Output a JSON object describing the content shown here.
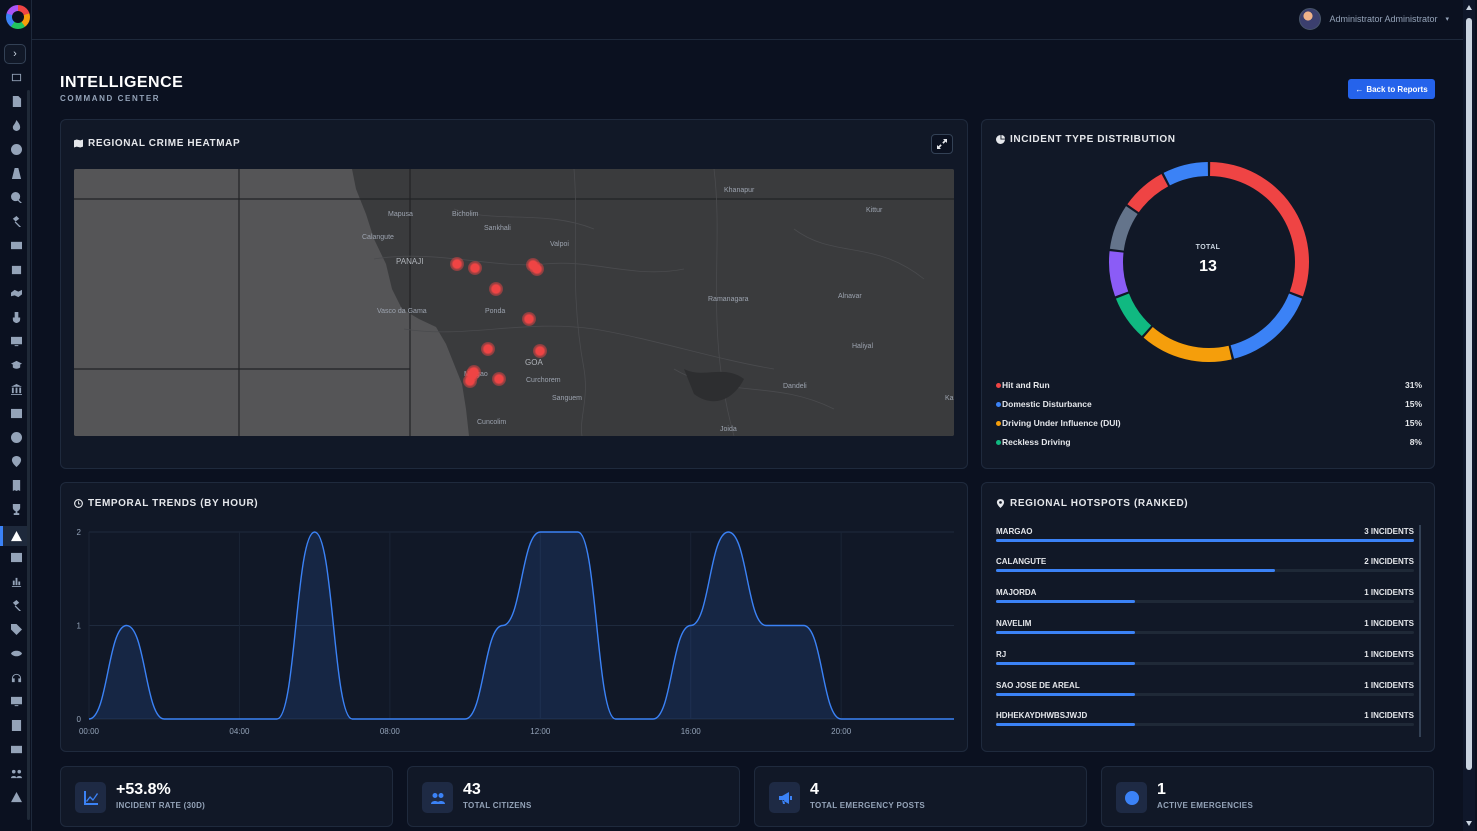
{
  "app": {
    "user_name": "Administrator Administrator"
  },
  "header": {
    "title": "INTELLIGENCE",
    "subtitle": "COMMAND CENTER",
    "back_label": "Back to Reports"
  },
  "heatmap": {
    "title": "REGIONAL CRIME HEATMAP",
    "places": [
      "Khanapur",
      "Kittur",
      "Mapusa",
      "Bicholim",
      "Sankhali",
      "Calangute",
      "Valpoi",
      "PANAJI",
      "Vasco da Gama",
      "Ponda",
      "Ramanagara",
      "Alnavar",
      "Haliyal",
      "GOA",
      "Margao",
      "Curchorem",
      "Sanguem",
      "Dandeli",
      "Cuncolim",
      "Joida",
      "Ka"
    ]
  },
  "incident_types": {
    "title": "INCIDENT TYPE DISTRIBUTION",
    "total_label": "TOTAL",
    "total": "13",
    "legend": [
      {
        "name": "Hit and Run",
        "pct": "31%",
        "color": "#ef4444"
      },
      {
        "name": "Domestic Disturbance",
        "pct": "15%",
        "color": "#3b82f6"
      },
      {
        "name": "Driving Under Influence (DUI)",
        "pct": "15%",
        "color": "#f59e0b"
      },
      {
        "name": "Reckless Driving",
        "pct": "8%",
        "color": "#10b981"
      }
    ]
  },
  "temporal": {
    "title": "TEMPORAL TRENDS (BY HOUR)",
    "chart_data": {
      "type": "area",
      "x": [
        0,
        1,
        2,
        3,
        4,
        5,
        6,
        7,
        8,
        9,
        10,
        11,
        12,
        13,
        14,
        15,
        16,
        17,
        18,
        19,
        20,
        21,
        22,
        23
      ],
      "x_tick_labels": [
        "00:00",
        "04:00",
        "08:00",
        "12:00",
        "16:00",
        "20:00"
      ],
      "y_ticks": [
        "0",
        "1",
        "2"
      ],
      "values": [
        0,
        1,
        0,
        0,
        0,
        0,
        2,
        0,
        0,
        0,
        0,
        1,
        2,
        2,
        0,
        0,
        1,
        2,
        1,
        1,
        0,
        0,
        0,
        0
      ],
      "ylim": [
        0,
        2
      ],
      "color": "#3b82f6",
      "grid": true
    }
  },
  "hotspots": {
    "title": "REGIONAL HOTSPOTS (RANKED)",
    "items": [
      {
        "name": "MARGAO",
        "count": "3 INCIDENTS",
        "value": 3
      },
      {
        "name": "CALANGUTE",
        "count": "2 INCIDENTS",
        "value": 2
      },
      {
        "name": "MAJORDA",
        "count": "1 INCIDENTS",
        "value": 1
      },
      {
        "name": "NAVELIM",
        "count": "1 INCIDENTS",
        "value": 1
      },
      {
        "name": "RJ",
        "count": "1 INCIDENTS",
        "value": 1
      },
      {
        "name": "SAO JOSE DE AREAL",
        "count": "1 INCIDENTS",
        "value": 1
      },
      {
        "name": "HDHEKAYDHWBSJWJD",
        "count": "1 INCIDENTS",
        "value": 1
      }
    ],
    "max": 3
  },
  "stats": [
    {
      "value": "+53.8%",
      "label": "INCIDENT RATE (30D)",
      "icon": "chart-line-icon"
    },
    {
      "value": "43",
      "label": "TOTAL CITIZENS",
      "icon": "users-icon"
    },
    {
      "value": "4",
      "label": "TOTAL EMERGENCY POSTS",
      "icon": "megaphone-icon"
    },
    {
      "value": "1",
      "label": "ACTIVE EMERGENCIES",
      "icon": "info-icon"
    }
  ]
}
